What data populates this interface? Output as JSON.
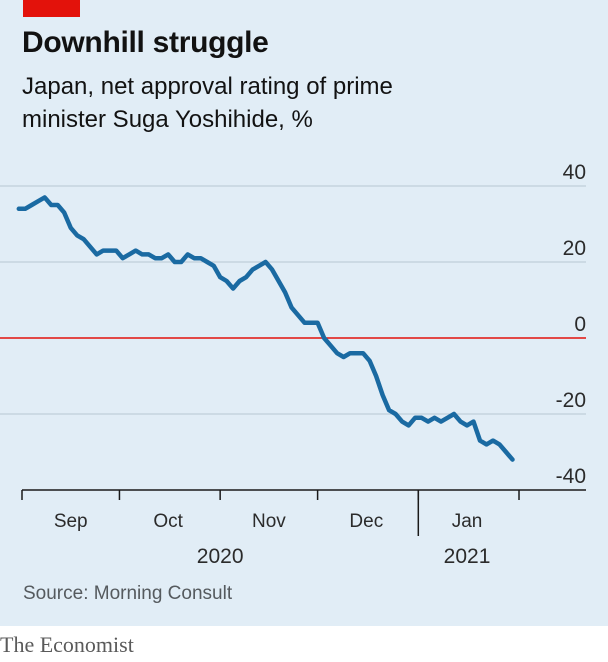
{
  "header": {
    "title": "Downhill struggle",
    "subtitle": "Japan, net approval rating of prime minister Suga Yoshihide, %"
  },
  "footer": {
    "source": "Source: Morning Consult",
    "brand": "The Economist"
  },
  "colors": {
    "line": "#1a6aa2",
    "zero_line": "#e3120b",
    "grid": "#b7c6d3",
    "background": "#e1edf6",
    "brand_red": "#e3120b"
  },
  "chart_data": {
    "type": "line",
    "title": "Downhill struggle",
    "subtitle": "Japan, net approval rating of prime minister Suga Yoshihide, %",
    "ylim": [
      -40,
      40
    ],
    "yticks": [
      {
        "value": 40,
        "label": "40"
      },
      {
        "value": 20,
        "label": "20"
      },
      {
        "value": 0,
        "label": "0"
      },
      {
        "value": -20,
        "label": "-20"
      },
      {
        "value": -40,
        "label": "-40"
      }
    ],
    "xlim": [
      "2020-09-01",
      "2021-02-05"
    ],
    "xticks": [
      "2020-09-01",
      "2020-10-01",
      "2020-11-01",
      "2020-12-01",
      "2021-01-01",
      "2021-02-01"
    ],
    "month_labels": [
      {
        "label": "Sep",
        "date": "2020-09-16"
      },
      {
        "label": "Oct",
        "date": "2020-10-16"
      },
      {
        "label": "Nov",
        "date": "2020-11-16"
      },
      {
        "label": "Dec",
        "date": "2020-12-16"
      },
      {
        "label": "Jan",
        "date": "2021-01-16"
      }
    ],
    "year_labels": [
      {
        "label": "2020",
        "date": "2020-11-01"
      },
      {
        "label": "2021",
        "date": "2021-01-16"
      }
    ],
    "zero_line": 0,
    "grid": true,
    "series": [
      {
        "x": [
          "2020-08-31",
          "2020-09-02",
          "2020-09-04",
          "2020-09-06",
          "2020-09-08",
          "2020-09-10",
          "2020-09-12",
          "2020-09-14",
          "2020-09-16",
          "2020-09-18",
          "2020-09-20",
          "2020-09-22",
          "2020-09-24",
          "2020-09-26",
          "2020-09-28",
          "2020-09-30",
          "2020-10-02",
          "2020-10-04",
          "2020-10-06",
          "2020-10-08",
          "2020-10-10",
          "2020-10-12",
          "2020-10-14",
          "2020-10-16",
          "2020-10-18",
          "2020-10-20",
          "2020-10-22",
          "2020-10-24",
          "2020-10-26",
          "2020-10-28",
          "2020-10-30",
          "2020-11-01",
          "2020-11-03",
          "2020-11-05",
          "2020-11-07",
          "2020-11-09",
          "2020-11-11",
          "2020-11-13",
          "2020-11-15",
          "2020-11-17",
          "2020-11-19",
          "2020-11-21",
          "2020-11-23",
          "2020-11-25",
          "2020-11-27",
          "2020-11-29",
          "2020-12-01",
          "2020-12-03",
          "2020-12-05",
          "2020-12-07",
          "2020-12-09",
          "2020-12-11",
          "2020-12-13",
          "2020-12-15",
          "2020-12-17",
          "2020-12-19",
          "2020-12-21",
          "2020-12-23",
          "2020-12-25",
          "2020-12-27",
          "2020-12-29",
          "2020-12-31",
          "2021-01-02",
          "2021-01-04",
          "2021-01-06",
          "2021-01-08",
          "2021-01-10",
          "2021-01-12",
          "2021-01-14",
          "2021-01-16",
          "2021-01-18",
          "2021-01-20",
          "2021-01-22",
          "2021-01-24",
          "2021-01-26",
          "2021-01-28",
          "2021-01-30"
        ],
        "y": [
          34,
          34,
          35,
          36,
          37,
          35,
          35,
          33,
          29,
          27,
          26,
          24,
          22,
          23,
          23,
          23,
          21,
          22,
          23,
          22,
          22,
          21,
          21,
          22,
          20,
          20,
          22,
          21,
          21,
          20,
          19,
          16,
          15,
          13,
          15,
          16,
          18,
          19,
          20,
          18,
          15,
          12,
          8,
          6,
          4,
          4,
          4,
          0,
          -2,
          -4,
          -5,
          -4,
          -4,
          -4,
          -6,
          -10,
          -15,
          -19,
          -20,
          -22,
          -23,
          -21,
          -21,
          -22,
          -21,
          -22,
          -21,
          -20,
          -22,
          -23,
          -22,
          -27,
          -28,
          -27,
          -28,
          -30,
          -32
        ]
      }
    ]
  }
}
